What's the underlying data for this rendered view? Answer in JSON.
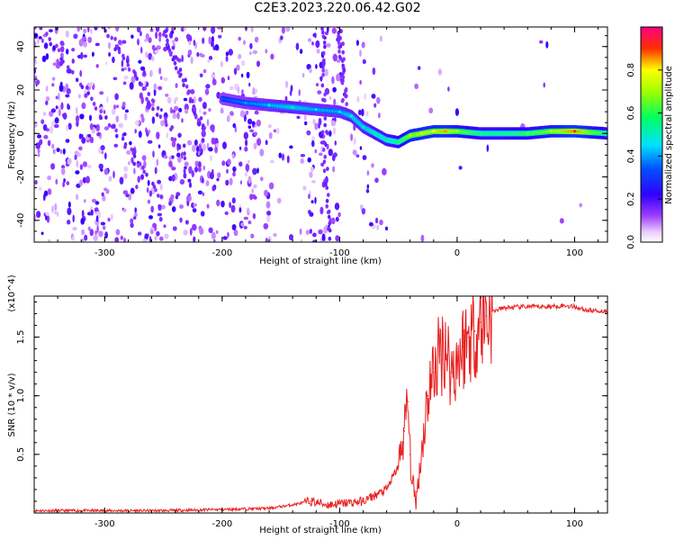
{
  "title": "C2E3.2023.220.06.42.G02",
  "colors": {
    "snr_line": "#e82020",
    "spectrogram_main": "#7a1ee6",
    "spectrogram_light": "#c9a0f5"
  },
  "chart_data": [
    {
      "type": "heatmap",
      "name": "spectrogram",
      "xlabel": "Height of straight line (km)",
      "ylabel": "Frequency (Hz)",
      "xlim": [
        -360,
        128
      ],
      "ylim": [
        -50,
        49
      ],
      "xticks": [
        -300,
        -200,
        -100,
        0,
        100
      ],
      "yticks": [
        -40,
        -20,
        0,
        20,
        40
      ],
      "xtick_labels": [
        "-300",
        "-200",
        "-100",
        "0",
        "100"
      ],
      "ytick_labels": [
        "-40",
        "-20",
        "0",
        "20",
        "40"
      ],
      "colorbar": {
        "label": "Normalized spectral amplitude",
        "range": [
          0,
          1
        ],
        "ticks": [
          "0.0",
          "0.2",
          "0.4",
          "0.6",
          "0.8"
        ],
        "colormap": [
          "#ffffff",
          "#e080ff",
          "#8000ff",
          "#0000ff",
          "#00ffff",
          "#00ff00",
          "#ffff00",
          "#ff0000",
          "#ff00a0"
        ]
      },
      "ridge": [
        {
          "x": -200,
          "y": 16,
          "a": 0.35
        },
        {
          "x": -180,
          "y": 14,
          "a": 0.4
        },
        {
          "x": -160,
          "y": 13,
          "a": 0.45
        },
        {
          "x": -140,
          "y": 12,
          "a": 0.5
        },
        {
          "x": -120,
          "y": 11,
          "a": 0.45
        },
        {
          "x": -100,
          "y": 10,
          "a": 0.45
        },
        {
          "x": -90,
          "y": 8,
          "a": 0.5
        },
        {
          "x": -80,
          "y": 3,
          "a": 0.5
        },
        {
          "x": -70,
          "y": 0,
          "a": 0.55
        },
        {
          "x": -60,
          "y": -3,
          "a": 0.55
        },
        {
          "x": -50,
          "y": -4,
          "a": 0.6
        },
        {
          "x": -40,
          "y": -1,
          "a": 0.75
        },
        {
          "x": -30,
          "y": 0,
          "a": 0.8
        },
        {
          "x": -20,
          "y": 1,
          "a": 0.8
        },
        {
          "x": -10,
          "y": 1,
          "a": 0.85
        },
        {
          "x": 0,
          "y": 1,
          "a": 0.75
        },
        {
          "x": 20,
          "y": 0,
          "a": 0.6
        },
        {
          "x": 40,
          "y": 0,
          "a": 0.6
        },
        {
          "x": 60,
          "y": 0,
          "a": 0.65
        },
        {
          "x": 80,
          "y": 1,
          "a": 0.75
        },
        {
          "x": 100,
          "y": 1,
          "a": 0.9
        },
        {
          "x": 128,
          "y": 0,
          "a": 0.6
        }
      ]
    },
    {
      "type": "line",
      "name": "snr",
      "xlabel": "Height of straight line (km)",
      "ylabel": "SNR (10 * v/v)",
      "y_multiplier": "(x10^4)",
      "xlim": [
        -360,
        128
      ],
      "ylim": [
        0,
        1.85
      ],
      "xticks": [
        -300,
        -200,
        -100,
        0,
        100
      ],
      "yticks": [
        0.5,
        1.0,
        1.5
      ],
      "xtick_labels": [
        "-300",
        "-200",
        "-100",
        "0",
        "100"
      ],
      "ytick_labels": [
        "0.5",
        "1.0",
        "1.5"
      ],
      "series": [
        {
          "x": [
            -360,
            -300,
            -250,
            -200,
            -160,
            -140,
            -125,
            -110,
            -100,
            -80,
            -60,
            -50,
            -45,
            -42,
            -40,
            -38,
            -35,
            -30,
            -25,
            -20,
            -15,
            -10,
            -5,
            0,
            5,
            10,
            15,
            20,
            25,
            30,
            40,
            60,
            80,
            90,
            100,
            110,
            128
          ],
          "values": [
            0.02,
            0.02,
            0.02,
            0.03,
            0.04,
            0.07,
            0.1,
            0.07,
            0.08,
            0.1,
            0.2,
            0.4,
            0.7,
            0.95,
            0.5,
            0.25,
            0.1,
            0.55,
            1.0,
            1.2,
            1.35,
            1.45,
            1.2,
            1.3,
            1.42,
            1.5,
            1.55,
            1.63,
            1.68,
            1.72,
            1.75,
            1.76,
            1.76,
            1.77,
            1.76,
            1.73,
            1.72
          ]
        }
      ]
    }
  ]
}
